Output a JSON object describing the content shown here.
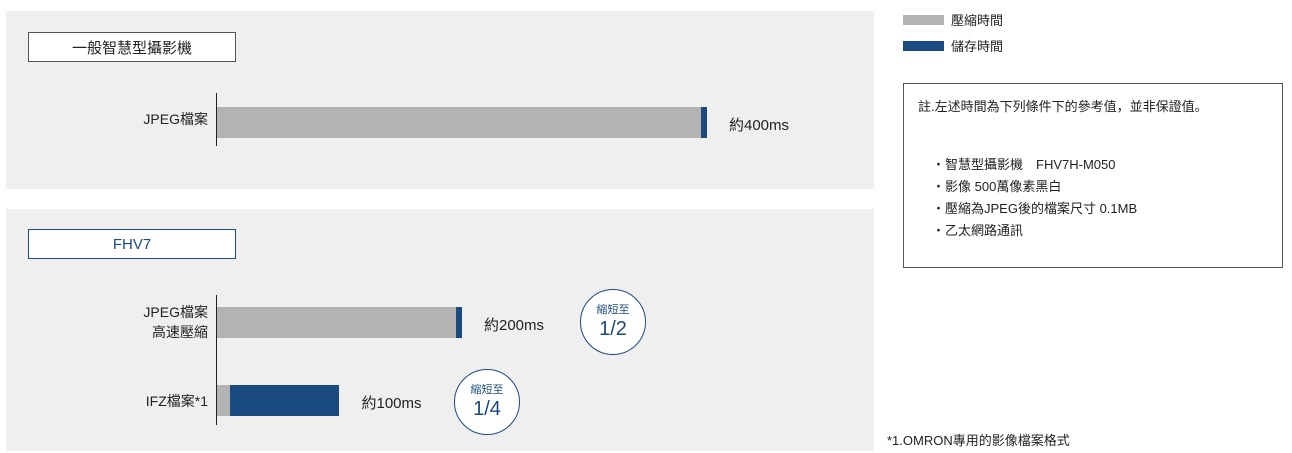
{
  "colors": {
    "compress": "#b3b3b3",
    "store": "#1a4b80",
    "panel": "#efefef"
  },
  "legend": [
    {
      "label": "壓縮時間",
      "color": "#b3b3b3"
    },
    {
      "label": "儲存時間",
      "color": "#1a4b80"
    }
  ],
  "note": {
    "title": "註.左述時間為下列條件下的參考值，並非保證值。",
    "items": [
      "智慧型攝影機　FHV7H-M050",
      "影像 500萬像素黑白",
      "壓縮為JPEG後的檔案尺寸 0.1MB",
      "乙太網路通訊"
    ]
  },
  "footnote": "*1.OMRON專用的影像檔案格式",
  "chart_data": {
    "type": "bar",
    "orientation": "horizontal",
    "stacked": true,
    "unit": "ms",
    "xlim": [
      0,
      400
    ],
    "groups": [
      {
        "title": "一般智慧型攝影機",
        "rows": [
          {
            "label_lines": [
              "JPEG檔案"
            ],
            "compress": 395,
            "store": 5,
            "total": 400,
            "value_label": "約400ms"
          }
        ]
      },
      {
        "title": "FHV7",
        "rows": [
          {
            "label_lines": [
              "JPEG檔案",
              "高速壓縮"
            ],
            "compress": 195,
            "store": 5,
            "total": 200,
            "value_label": "約200ms",
            "badge": {
              "line1": "縮短至",
              "line2": "1/2"
            }
          },
          {
            "label_lines": [
              "IFZ檔案*1"
            ],
            "compress": 11,
            "store": 89,
            "total": 100,
            "value_label": "約100ms",
            "badge": {
              "line1": "縮短至",
              "line2": "1/4"
            }
          }
        ]
      }
    ]
  }
}
